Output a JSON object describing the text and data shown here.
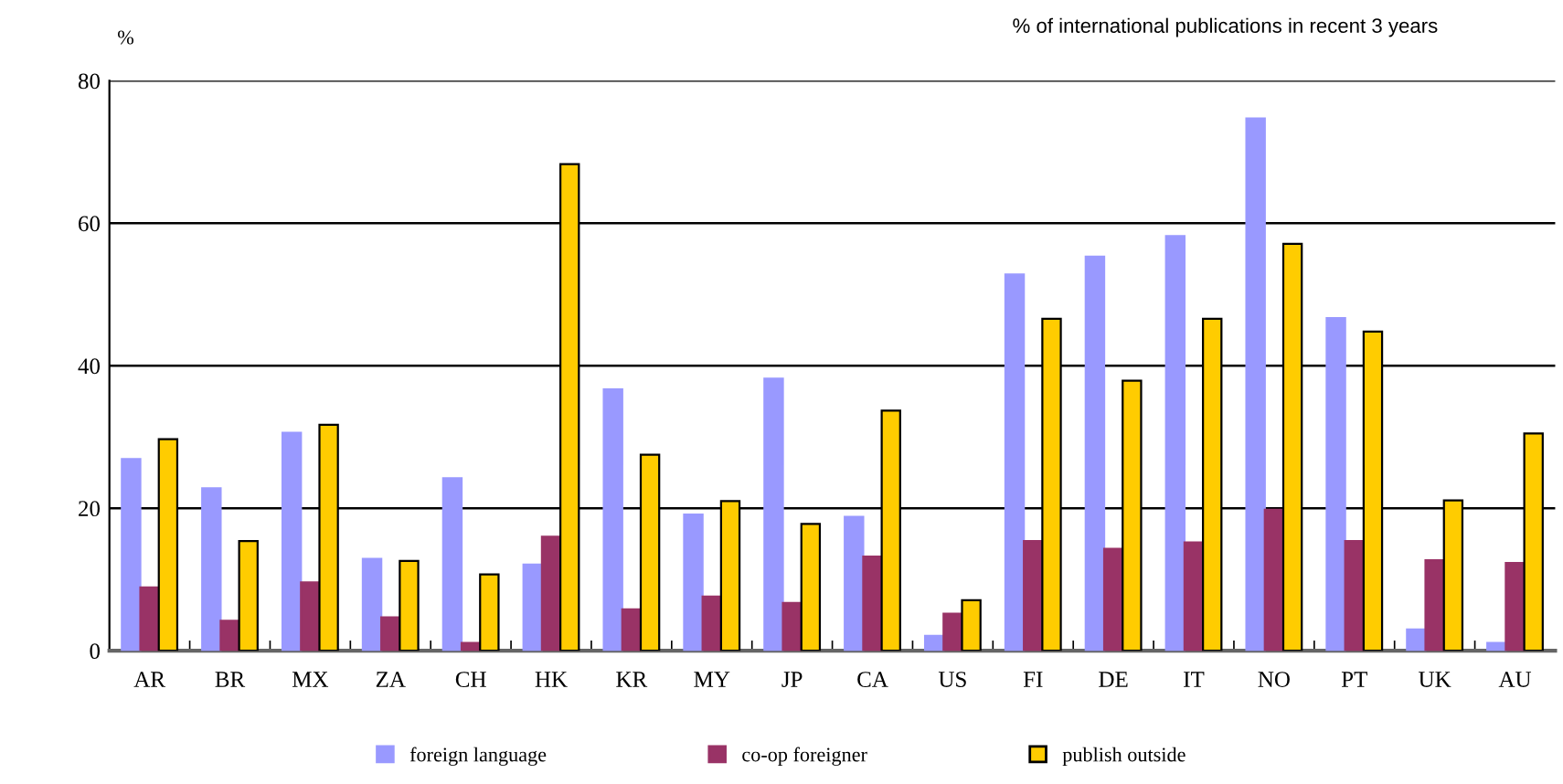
{
  "chart_data": {
    "type": "bar",
    "title": "% of international publications in recent 3 years",
    "ylabel": "%",
    "categories": [
      "AR",
      "BR",
      "MX",
      "ZA",
      "CH",
      "HK",
      "KR",
      "MY",
      "JP",
      "CA",
      "US",
      "FI",
      "DE",
      "IT",
      "NO",
      "PT",
      "UK",
      "AU"
    ],
    "series": [
      {
        "name": "foreign language",
        "color": "#9999ff",
        "values": [
          26.9,
          22.8,
          30.6,
          12.9,
          24.2,
          12.1,
          36.7,
          19.1,
          38.2,
          18.8,
          2.1,
          52.8,
          55.3,
          58.2,
          74.7,
          46.7,
          3.0,
          1.1
        ]
      },
      {
        "name": "co-op foreigner",
        "color": "#993366",
        "values": [
          8.9,
          4.2,
          9.6,
          4.7,
          1.1,
          16.0,
          5.8,
          7.6,
          6.7,
          13.2,
          5.2,
          15.4,
          14.3,
          15.2,
          19.8,
          15.4,
          12.7,
          12.3
        ]
      },
      {
        "name": "publish outside",
        "color": "#ffcc00",
        "values": [
          29.7,
          15.4,
          31.7,
          12.6,
          10.7,
          68.3,
          27.5,
          21.0,
          17.8,
          33.7,
          7.1,
          46.6,
          37.9,
          46.6,
          57.1,
          44.8,
          21.1,
          30.5
        ]
      }
    ],
    "ylim": [
      0,
      80
    ],
    "yticks": [
      0,
      20,
      40,
      60,
      80
    ],
    "grid": "y",
    "legend": "bottom"
  }
}
